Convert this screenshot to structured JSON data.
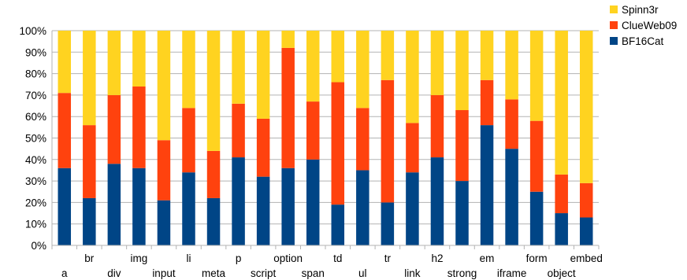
{
  "chart_data": {
    "type": "bar",
    "stacked": true,
    "percent": true,
    "categories": [
      "a",
      "br",
      "div",
      "img",
      "input",
      "li",
      "meta",
      "p",
      "script",
      "option",
      "span",
      "td",
      "ul",
      "tr",
      "link",
      "h2",
      "strong",
      "em",
      "iframe",
      "form",
      "object",
      "embed"
    ],
    "series": [
      {
        "name": "BF16Cat",
        "color": "#004586",
        "values": [
          36,
          22,
          38,
          36,
          21,
          34,
          22,
          41,
          32,
          36,
          40,
          19,
          35,
          20,
          34,
          41,
          30,
          56,
          45,
          25,
          15,
          13
        ]
      },
      {
        "name": "ClueWeb09",
        "color": "#ff420e",
        "values": [
          35,
          34,
          32,
          38,
          28,
          30,
          22,
          25,
          27,
          56,
          27,
          57,
          29,
          57,
          23,
          29,
          33,
          21,
          23,
          33,
          18,
          16
        ]
      },
      {
        "name": "Spinn3r",
        "color": "#ffd320",
        "values": [
          29,
          44,
          30,
          26,
          51,
          36,
          56,
          34,
          41,
          8,
          33,
          24,
          36,
          23,
          43,
          30,
          37,
          23,
          32,
          42,
          67,
          71
        ]
      }
    ],
    "ylim": [
      0,
      100
    ],
    "yticks": [
      "0%",
      "10%",
      "20%",
      "30%",
      "40%",
      "50%",
      "60%",
      "70%",
      "80%",
      "90%",
      "100%"
    ],
    "grid": true,
    "legend": {
      "position": "top-right",
      "order": [
        "Spinn3r",
        "ClueWeb09",
        "BF16Cat"
      ]
    }
  }
}
